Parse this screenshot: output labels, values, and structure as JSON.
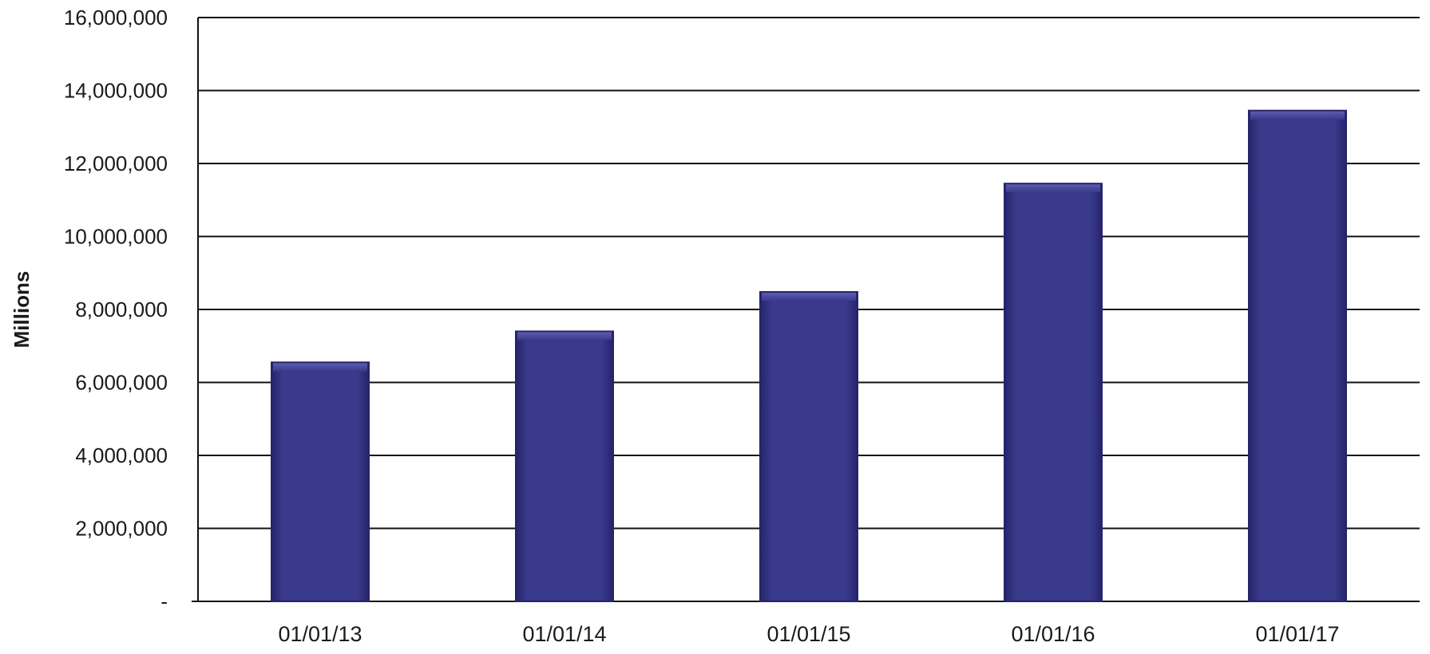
{
  "chart_data": {
    "type": "bar",
    "title": "",
    "xlabel": "",
    "ylabel": "Millions",
    "categories": [
      "01/01/13",
      "01/01/14",
      "01/01/15",
      "01/01/16",
      "01/01/17"
    ],
    "values": [
      6550000,
      7400000,
      8480000,
      11450000,
      13450000
    ],
    "ylim": [
      0,
      16000000
    ],
    "yticks": [
      0,
      2000000,
      4000000,
      6000000,
      8000000,
      10000000,
      12000000,
      14000000,
      16000000
    ],
    "ytick_labels": [
      "-",
      "2,000,000",
      "4,000,000",
      "6,000,000",
      "8,000,000",
      "10,000,000",
      "12,000,000",
      "14,000,000",
      "16,000,000"
    ],
    "grid": true,
    "legend": "none",
    "colors": {
      "bar": "#3a3a8c",
      "bar_dark": "#25246a",
      "bar_light": "#5c5cb0",
      "grid": "#111111",
      "text": "#1a1a1a"
    }
  }
}
